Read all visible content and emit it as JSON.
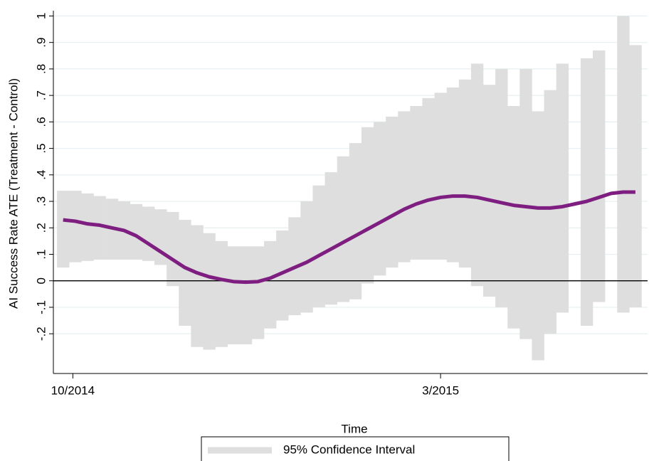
{
  "chart_data": {
    "type": "band-line",
    "x_label": "Time",
    "y_label": "AI Success Rate ATE (Treatment - Control)",
    "x": [
      -4,
      1,
      6,
      11,
      16,
      21,
      26,
      31,
      36,
      41,
      46,
      51,
      56,
      61,
      66,
      71,
      76,
      81,
      86,
      91,
      96,
      101,
      106,
      111,
      116,
      121,
      126,
      131,
      136,
      141,
      146,
      151,
      156,
      161,
      166,
      171,
      176,
      181,
      186,
      191,
      196,
      201,
      206,
      211,
      216,
      221,
      226,
      231
    ],
    "series": [
      {
        "name": "95% Confidence Interval",
        "color": "#dedede",
        "lower": [
          0.05,
          0.07,
          0.075,
          0.08,
          0.08,
          0.08,
          0.08,
          0.075,
          0.06,
          -0.02,
          -0.17,
          -0.25,
          -0.26,
          -0.25,
          -0.24,
          -0.24,
          -0.22,
          -0.18,
          -0.15,
          -0.13,
          -0.12,
          -0.1,
          -0.09,
          -0.08,
          -0.07,
          -0.01,
          0.02,
          0.05,
          0.07,
          0.08,
          0.08,
          0.08,
          0.07,
          0.05,
          -0.02,
          -0.06,
          -0.1,
          -0.18,
          -0.22,
          -0.3,
          -0.2,
          -0.12,
          null,
          -0.17,
          -0.08,
          null,
          -0.12,
          -0.1
        ],
        "upper": [
          0.34,
          0.34,
          0.33,
          0.32,
          0.31,
          0.3,
          0.29,
          0.28,
          0.27,
          0.26,
          0.23,
          0.21,
          0.18,
          0.15,
          0.13,
          0.13,
          0.13,
          0.15,
          0.19,
          0.24,
          0.3,
          0.36,
          0.41,
          0.47,
          0.52,
          0.58,
          0.6,
          0.62,
          0.64,
          0.66,
          0.69,
          0.71,
          0.73,
          0.76,
          0.82,
          0.74,
          0.8,
          0.66,
          0.8,
          0.64,
          0.72,
          0.82,
          null,
          0.84,
          0.87,
          null,
          1.0,
          0.89
        ]
      },
      {
        "color": "#7e1e80",
        "values": [
          0.23,
          0.225,
          0.215,
          0.21,
          0.2,
          0.19,
          0.17,
          0.14,
          0.11,
          0.08,
          0.05,
          0.03,
          0.015,
          0.005,
          -0.003,
          -0.005,
          -0.003,
          0.01,
          0.03,
          0.05,
          0.07,
          0.095,
          0.12,
          0.145,
          0.17,
          0.195,
          0.22,
          0.245,
          0.27,
          0.29,
          0.305,
          0.315,
          0.32,
          0.32,
          0.315,
          0.305,
          0.295,
          0.285,
          0.28,
          0.275,
          0.275,
          0.28,
          0.29,
          0.3,
          0.315,
          0.33,
          0.335,
          0.335
        ]
      }
    ],
    "xlim": [
      -8,
      236
    ],
    "xticks": [
      {
        "value": 0,
        "label": "10/2014"
      },
      {
        "value": 151,
        "label": "3/2015"
      }
    ],
    "ylim": [
      -0.35,
      1.02
    ],
    "yticks": [
      {
        "value": -0.2,
        "label": "-.2"
      },
      {
        "value": -0.1,
        "label": "-.1"
      },
      0,
      {
        "value": 0.1,
        "label": ".1"
      },
      {
        "value": 0.2,
        "label": ".2"
      },
      {
        "value": 0.3,
        "label": ".3"
      },
      {
        "value": 0.4,
        "label": ".4"
      },
      {
        "value": 0.5,
        "label": ".5"
      },
      {
        "value": 0.6,
        "label": ".6"
      },
      {
        "value": 0.7,
        "label": ".7"
      },
      {
        "value": 0.8,
        "label": ".8"
      },
      {
        "value": 0.9,
        "label": ".9"
      },
      1
    ],
    "grid": true,
    "zero_line": true,
    "legend": "bottom"
  }
}
